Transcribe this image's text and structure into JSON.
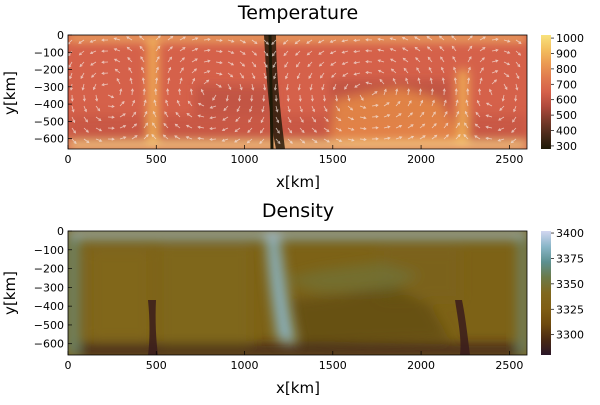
{
  "chart_data": [
    {
      "type": "heatmap",
      "title": "Temperature",
      "xlabel": "x[km]",
      "ylabel": "y[km]",
      "xlim": [
        0,
        2600
      ],
      "ylim": [
        -660,
        0
      ],
      "xticks": [
        0,
        500,
        1000,
        1500,
        2000,
        2500
      ],
      "yticks": [
        0,
        -100,
        -200,
        -300,
        -400,
        -500,
        -600
      ],
      "colorbar": {
        "range": [
          280,
          1020
        ],
        "ticks": [
          300,
          400,
          500,
          600,
          700,
          800,
          900,
          1000
        ],
        "colors": [
          "#1e1a08",
          "#4a2a1a",
          "#7a3a2a",
          "#b04a3c",
          "#d5614a",
          "#e07a4e",
          "#eb9a52",
          "#f3bf5e",
          "#f8e27c"
        ]
      },
      "overlay": "velocity arrows",
      "features": {
        "upwellings_km": [
          470,
          2230
        ],
        "downwelling_km": 1150
      }
    },
    {
      "type": "heatmap",
      "title": "Density",
      "xlabel": "x[km]",
      "ylabel": "y[km]",
      "xlim": [
        0,
        2600
      ],
      "ylim": [
        -660,
        0
      ],
      "xticks": [
        0,
        500,
        1000,
        1500,
        2000,
        2500
      ],
      "yticks": [
        0,
        -100,
        -200,
        -300,
        -400,
        -500,
        -600
      ],
      "colorbar": {
        "range": [
          3280,
          3402
        ],
        "ticks": [
          3300,
          3325,
          3350,
          3375,
          3400
        ],
        "colors": [
          "#2a1628",
          "#4a2a12",
          "#6e4a0e",
          "#7f5e14",
          "#80681e",
          "#6c7a48",
          "#5c9090",
          "#8ab6c8",
          "#d2d6f0"
        ]
      },
      "features": {
        "low_density_plumes_km": [
          470,
          2230
        ],
        "high_density_slab_km": 1150
      }
    }
  ]
}
